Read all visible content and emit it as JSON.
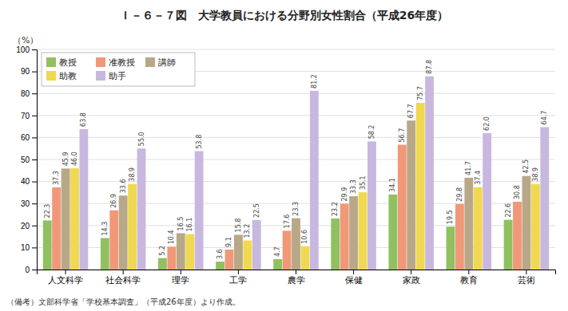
{
  "chart_data": {
    "type": "bar",
    "title": "Ｉ－６－７図　大学教員における分野別女性割合（平成26年度）",
    "ylabel": "（%）",
    "annotations": [
      "（備考）文部科学省「学校基本調査」（平成26年度）より作成。"
    ],
    "categories": [
      "人文科学",
      "社会科学",
      "理学",
      "工学",
      "農学",
      "保健",
      "家政",
      "教育",
      "芸術"
    ],
    "series": [
      {
        "name": "教授",
        "color": "#90c060",
        "values": [
          22.3,
          14.3,
          5.2,
          3.6,
          4.7,
          23.2,
          34.1,
          19.5,
          22.6
        ],
        "value_labels": [
          "22.3",
          "14.3",
          "5.2",
          "3.6",
          "4.7",
          "23.2",
          "34.1",
          "19.5",
          "22.6"
        ]
      },
      {
        "name": "准教授",
        "color": "#f09878",
        "values": [
          37.3,
          26.9,
          10.4,
          9.1,
          17.6,
          29.9,
          56.7,
          29.8,
          30.8
        ],
        "value_labels": [
          "37.3",
          "26.9",
          "10.4",
          "9.1",
          "17.6",
          "29.9",
          "56.7",
          "29.8",
          "30.8"
        ]
      },
      {
        "name": "講師",
        "color": "#b8a888",
        "values": [
          45.9,
          33.6,
          16.5,
          15.8,
          23.3,
          33.3,
          67.7,
          41.7,
          42.5
        ],
        "value_labels": [
          "45.9",
          "33.6",
          "16.5",
          "15.8",
          "23.3",
          "33.3",
          "67.7",
          "41.7",
          "42.5"
        ]
      },
      {
        "name": "助教",
        "color": "#f0d850",
        "values": [
          46.0,
          38.9,
          16.1,
          13.2,
          10.6,
          35.1,
          75.7,
          37.4,
          38.9
        ],
        "value_labels": [
          "46.0",
          "38.9",
          "16.1",
          "13.2",
          "10.6",
          "35.1",
          "75.7",
          "37.4",
          "38.9"
        ]
      },
      {
        "name": "助手",
        "color": "#c8b8e0",
        "values": [
          63.8,
          55.0,
          53.8,
          22.5,
          81.2,
          58.2,
          87.8,
          62.0,
          64.7
        ],
        "value_labels": [
          "63.8",
          "55.0",
          "53.8",
          "22.5",
          "81.2",
          "58.2",
          "87.8",
          "62.0",
          "64.7"
        ]
      }
    ],
    "ylim": [
      0,
      100
    ],
    "yticks": [
      0,
      10,
      20,
      30,
      40,
      50,
      60,
      70,
      80,
      90,
      100
    ],
    "grid": true,
    "legend": "upper left",
    "data_labels": true
  }
}
